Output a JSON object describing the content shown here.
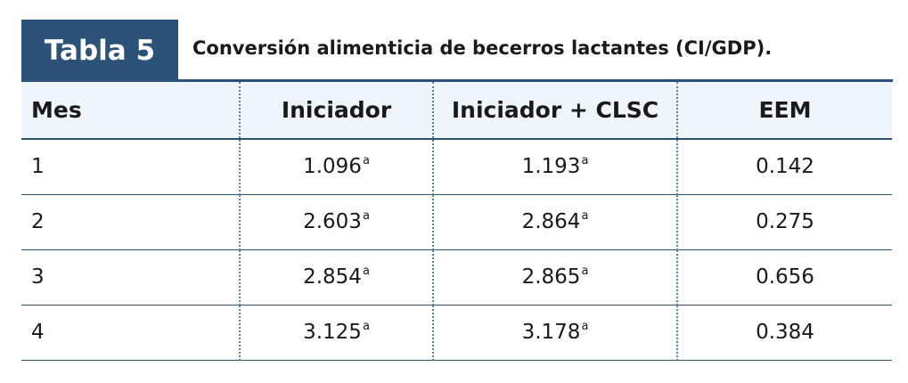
{
  "table_label": "Tabla 5",
  "table_title": "Conversión alimenticia de becerros lactantes (CI/GDP).",
  "columns": [
    "Mes",
    "Iniciador",
    "Iniciador + CLSC",
    "EEM"
  ],
  "rows": [
    {
      "mes": "1",
      "iniciador": "1.096",
      "iniciador_sup": "a",
      "clsc": "1.193",
      "clsc_sup": "a",
      "eem": "0.142"
    },
    {
      "mes": "2",
      "iniciador": "2.603",
      "iniciador_sup": "a",
      "clsc": "2.864",
      "clsc_sup": "a",
      "eem": "0.275"
    },
    {
      "mes": "3",
      "iniciador": "2.854",
      "iniciador_sup": "a",
      "clsc": "2.865",
      "clsc_sup": "a",
      "eem": "0.656"
    },
    {
      "mes": "4",
      "iniciador": "3.125",
      "iniciador_sup": "a",
      "clsc": "3.178",
      "clsc_sup": "a",
      "eem": "0.384"
    }
  ],
  "colors": {
    "accent": "#2d5278",
    "header_bg": "#eef5fb",
    "divider": "#5b7fa3"
  }
}
